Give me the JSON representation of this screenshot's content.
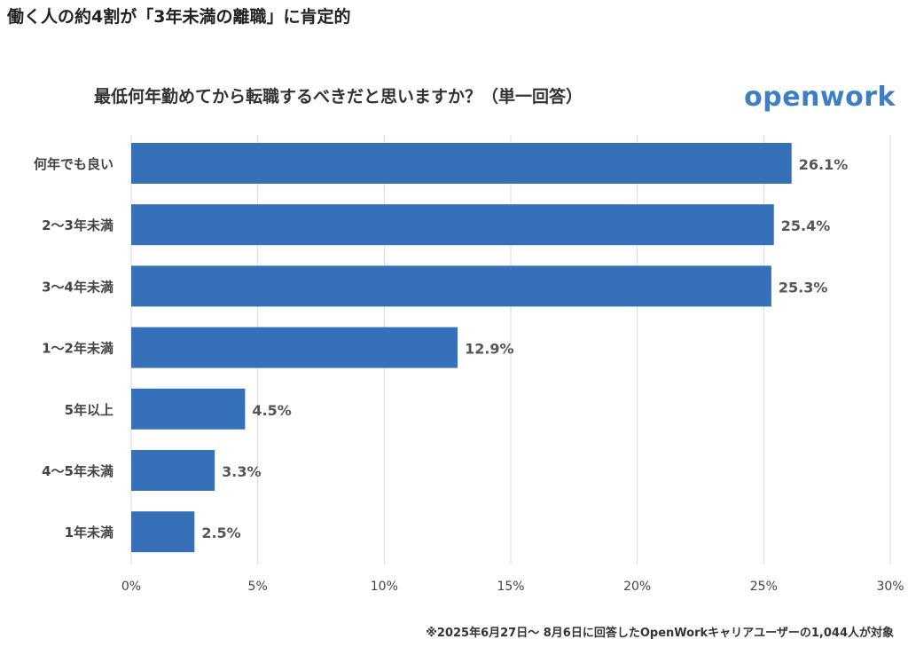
{
  "headline": "働く人の約4割が「3年未満の離職」に肯定的",
  "logo_text": "openwork",
  "footnote": "※2025年6月27日〜 8月6日に回答したOpenWorkキャリアユーザーの1,044人が対象",
  "colors": {
    "bar": "#3570b8",
    "grid": "#d9d9d9",
    "logo": "#3d7ec4"
  },
  "chart_data": {
    "type": "bar",
    "orientation": "horizontal",
    "title": "最低何年勤めてから転職するべきだと思いますか？（単一回答）",
    "categories": [
      "何年でも良い",
      "2〜3年未満",
      "3〜4年未満",
      "1〜2年未満",
      "5年以上",
      "4〜5年未満",
      "1年未満"
    ],
    "values": [
      26.1,
      25.4,
      25.3,
      12.9,
      4.5,
      3.3,
      2.5
    ],
    "value_labels": [
      "26.1%",
      "25.4%",
      "25.3%",
      "12.9%",
      "4.5%",
      "3.3%",
      "2.5%"
    ],
    "xlim": [
      0,
      30
    ],
    "xticks": [
      0,
      5,
      10,
      15,
      20,
      25,
      30
    ],
    "xtick_labels": [
      "0%",
      "5%",
      "10%",
      "15%",
      "20%",
      "25%",
      "30%"
    ],
    "xlabel": "",
    "ylabel": "",
    "grid": true,
    "legend": "none"
  }
}
